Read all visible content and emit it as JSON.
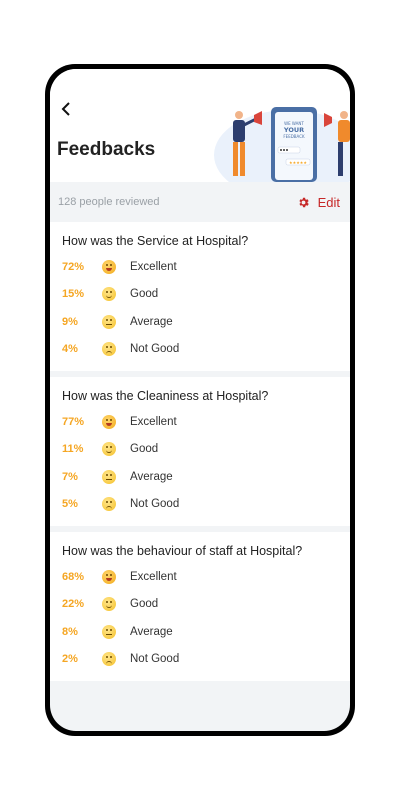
{
  "header": {
    "title": "Feedbacks",
    "back_icon": "chevron-left-icon"
  },
  "illustration": {
    "screen_text": "WE WANT YOUR FEEDBACK"
  },
  "stats": {
    "reviewed": "128 people reviewed",
    "edit_label": "Edit",
    "edit_icon": "gear-icon"
  },
  "colors": {
    "accent": "#c62828",
    "percent": "#f5a623"
  },
  "surveys": [
    {
      "question": "How was the Service at Hospital?",
      "options": [
        {
          "percent": "72%",
          "label": "Excellent"
        },
        {
          "percent": "15%",
          "label": "Good"
        },
        {
          "percent": "9%",
          "label": "Average"
        },
        {
          "percent": "4%",
          "label": "Not Good"
        }
      ]
    },
    {
      "question": "How was the Cleaniness at Hospital?",
      "options": [
        {
          "percent": "77%",
          "label": "Excellent"
        },
        {
          "percent": "11%",
          "label": "Good"
        },
        {
          "percent": "7%",
          "label": "Average"
        },
        {
          "percent": "5%",
          "label": "Not Good"
        }
      ]
    },
    {
      "question": "How was the behaviour of staff at Hospital?",
      "options": [
        {
          "percent": "68%",
          "label": "Excellent"
        },
        {
          "percent": "22%",
          "label": "Good"
        },
        {
          "percent": "8%",
          "label": "Average"
        },
        {
          "percent": "2%",
          "label": "Not Good"
        }
      ]
    }
  ]
}
